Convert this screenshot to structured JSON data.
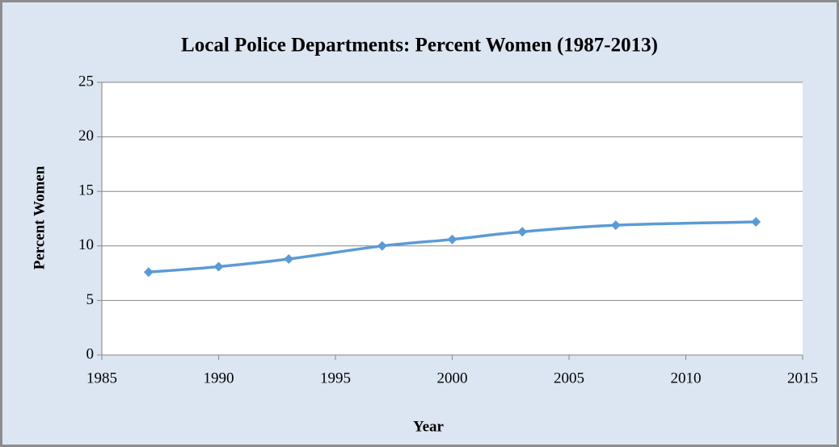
{
  "chart_data": {
    "type": "line",
    "title": "Local Police Departments: Percent Women (1987-2013)",
    "x_label": "Year",
    "y_label": "Percent Women",
    "x": [
      1987,
      1990,
      1993,
      1997,
      2000,
      2003,
      2007,
      2013
    ],
    "series": [
      {
        "name": "Percent Women",
        "color": "#5b9bd5",
        "values": [
          7.6,
          8.1,
          8.8,
          10.0,
          10.6,
          11.3,
          11.9,
          12.2
        ]
      }
    ],
    "xlim": [
      1985,
      2015
    ],
    "xticks": [
      1985,
      1990,
      1995,
      2000,
      2005,
      2010,
      2015
    ],
    "ylim": [
      0,
      25
    ],
    "yticks": [
      0,
      5,
      10,
      15,
      20,
      25
    ],
    "grid": true
  }
}
